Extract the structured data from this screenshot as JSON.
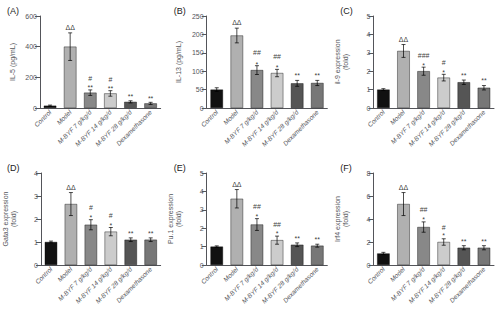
{
  "chart_data": [
    {
      "type": "bar",
      "title": "(A)",
      "ylabel": "IL-5 (pg/mL)",
      "categories": [
        "Control",
        "Model",
        "M-BYF 7 g/kg/d",
        "M-BYF 14 g/kg/d",
        "M-BYF 28 g/kg/d",
        "Dexamethasone"
      ],
      "values": [
        15,
        400,
        100,
        95,
        40,
        30
      ],
      "errors": [
        4,
        90,
        18,
        18,
        7,
        7
      ],
      "colors": [
        "#111111",
        "#b0b0b0",
        "#888888",
        "#cccccc",
        "#555555",
        "#777777"
      ],
      "ylim": [
        0,
        600
      ],
      "yticks": [
        0,
        200,
        400,
        600
      ],
      "grid": false,
      "annotations": [
        {
          "x": "Model",
          "y": 500,
          "text": "ΔΔ"
        },
        {
          "x": "M-BYF 7 g/kg/d",
          "y": 122,
          "text": "#"
        },
        {
          "x": "M-BYF 7 g/kg/d",
          "y": 110,
          "text": "**"
        },
        {
          "x": "M-BYF 14 g/kg/d",
          "y": 117,
          "text": "#"
        },
        {
          "x": "M-BYF 14 g/kg/d",
          "y": 105,
          "text": "**"
        },
        {
          "x": "M-BYF 28 g/kg/d",
          "y": 50,
          "text": "**"
        },
        {
          "x": "Dexamethasone",
          "y": 40,
          "text": "**"
        }
      ]
    },
    {
      "type": "bar",
      "title": "(B)",
      "ylabel": "IL-13 (pg/mL)",
      "categories": [
        "Control",
        "Model",
        "M-BYF 7 g/kg/d",
        "M-BYF 14 g/kg/d",
        "M-BYF 28 g/kg/d",
        "Dexamethasone"
      ],
      "values": [
        50,
        197,
        103,
        95,
        67,
        68
      ],
      "errors": [
        5,
        20,
        12,
        10,
        8,
        7
      ],
      "colors": [
        "#111111",
        "#b0b0b0",
        "#888888",
        "#cccccc",
        "#555555",
        "#777777"
      ],
      "ylim": [
        0,
        250
      ],
      "yticks": [
        0,
        50,
        100,
        150,
        200,
        250
      ],
      "grid": false,
      "annotations": [
        {
          "x": "Model",
          "y": 222,
          "text": "ΔΔ"
        },
        {
          "x": "M-BYF 7 g/kg/d",
          "y": 122,
          "text": "##"
        },
        {
          "x": "M-BYF 7 g/kg/d",
          "y": 110,
          "text": "*"
        },
        {
          "x": "M-BYF 14 g/kg/d",
          "y": 112,
          "text": "##"
        },
        {
          "x": "M-BYF 14 g/kg/d",
          "y": 100,
          "text": "*"
        },
        {
          "x": "M-BYF 28 g/kg/d",
          "y": 80,
          "text": "**"
        },
        {
          "x": "Dexamethasone",
          "y": 80,
          "text": "**"
        }
      ]
    },
    {
      "type": "bar",
      "title": "(C)",
      "ylabel": "il-9 expression\n(fold)",
      "categories": [
        "Control",
        "Model",
        "M-BYF 7 g/kg/d",
        "M-BYF 14 g/kg/d",
        "M-BYF 28 g/kg/d",
        "Dexamethasone"
      ],
      "values": [
        1.0,
        3.1,
        2.0,
        1.65,
        1.4,
        1.1
      ],
      "errors": [
        0.05,
        0.35,
        0.22,
        0.18,
        0.12,
        0.12
      ],
      "colors": [
        "#111111",
        "#b0b0b0",
        "#888888",
        "#cccccc",
        "#555555",
        "#777777"
      ],
      "ylim": [
        0,
        5
      ],
      "yticks": [
        0,
        1,
        2,
        3,
        4,
        5
      ],
      "grid": false,
      "annotations": [
        {
          "x": "Model",
          "y": 3.52,
          "text": "ΔΔ"
        },
        {
          "x": "M-BYF 7 g/kg/d",
          "y": 2.28,
          "text": "###"
        },
        {
          "x": "M-BYF 7 g/kg/d",
          "y": 2.13,
          "text": "*"
        },
        {
          "x": "M-BYF 14 g/kg/d",
          "y": 1.9,
          "text": "#"
        },
        {
          "x": "M-BYF 14 g/kg/d",
          "y": 1.75,
          "text": "*"
        },
        {
          "x": "M-BYF 28 g/kg/d",
          "y": 1.58,
          "text": "**"
        },
        {
          "x": "Dexamethasone",
          "y": 1.28,
          "text": "**"
        }
      ]
    },
    {
      "type": "bar",
      "title": "(D)",
      "ylabel": "Gata3 expression\n(fold)",
      "categories": [
        "Control",
        "Model",
        "M-BYF 7 g/kg/d",
        "M-BYF 14 g/kg/d",
        "M-BYF 28 g/kg/d",
        "Dexamethasone"
      ],
      "values": [
        1.0,
        2.65,
        1.75,
        1.45,
        1.1,
        1.1
      ],
      "errors": [
        0.04,
        0.5,
        0.22,
        0.18,
        0.08,
        0.08
      ],
      "colors": [
        "#111111",
        "#b0b0b0",
        "#888888",
        "#cccccc",
        "#555555",
        "#777777"
      ],
      "ylim": [
        0,
        4
      ],
      "yticks": [
        0,
        1,
        2,
        3,
        4
      ],
      "grid": false,
      "annotations": [
        {
          "x": "Model",
          "y": 3.22,
          "text": "ΔΔ"
        },
        {
          "x": "M-BYF 7 g/kg/d",
          "y": 2.03,
          "text": "#"
        },
        {
          "x": "M-BYF 7 g/kg/d",
          "y": 1.9,
          "text": "*"
        },
        {
          "x": "M-BYF 14 g/kg/d",
          "y": 1.7,
          "text": "#"
        },
        {
          "x": "M-BYF 14 g/kg/d",
          "y": 1.57,
          "text": "*"
        },
        {
          "x": "M-BYF 28 g/kg/d",
          "y": 1.22,
          "text": "**"
        },
        {
          "x": "Dexamethasone",
          "y": 1.22,
          "text": "**"
        }
      ]
    },
    {
      "type": "bar",
      "title": "(E)",
      "ylabel": "Pu.1 expression\n(fold)",
      "categories": [
        "Control",
        "Model",
        "M-BYF 7 g/kg/d",
        "M-BYF 14 g/kg/d",
        "M-BYF 28 g/kg/d",
        "Dexamethasone"
      ],
      "values": [
        1.0,
        3.6,
        2.2,
        1.35,
        1.1,
        1.05
      ],
      "errors": [
        0.04,
        0.5,
        0.32,
        0.22,
        0.1,
        0.08
      ],
      "colors": [
        "#111111",
        "#b0b0b0",
        "#888888",
        "#cccccc",
        "#555555",
        "#777777"
      ],
      "ylim": [
        0,
        5
      ],
      "yticks": [
        0,
        1,
        2,
        3,
        4,
        5
      ],
      "grid": false,
      "annotations": [
        {
          "x": "Model",
          "y": 4.18,
          "text": "ΔΔ"
        },
        {
          "x": "M-BYF 7 g/kg/d",
          "y": 2.6,
          "text": "##"
        },
        {
          "x": "M-BYF 7 g/kg/d",
          "y": 2.45,
          "text": "*"
        },
        {
          "x": "M-BYF 14 g/kg/d",
          "y": 1.65,
          "text": "##"
        },
        {
          "x": "M-BYF 14 g/kg/d",
          "y": 1.5,
          "text": "*"
        },
        {
          "x": "M-BYF 28 g/kg/d",
          "y": 1.25,
          "text": "**"
        },
        {
          "x": "Dexamethasone",
          "y": 1.18,
          "text": "**"
        }
      ]
    },
    {
      "type": "bar",
      "title": "(F)",
      "ylabel": "Irf4 expression\n(fold)",
      "categories": [
        "Control",
        "Model",
        "M-BYF 7 g/kg/d",
        "M-BYF 14 g/kg/d",
        "M-BYF 28 g/kg/d",
        "Dexamethasone"
      ],
      "values": [
        1.0,
        5.3,
        3.3,
        2.0,
        1.5,
        1.5
      ],
      "errors": [
        0.1,
        1.0,
        0.45,
        0.28,
        0.18,
        0.18
      ],
      "colors": [
        "#111111",
        "#b0b0b0",
        "#888888",
        "#cccccc",
        "#555555",
        "#777777"
      ],
      "ylim": [
        0,
        8
      ],
      "yticks": [
        0,
        2,
        4,
        6,
        8
      ],
      "grid": false,
      "annotations": [
        {
          "x": "Model",
          "y": 6.45,
          "text": "ΔΔ"
        },
        {
          "x": "M-BYF 7 g/kg/d",
          "y": 3.88,
          "text": "##"
        },
        {
          "x": "M-BYF 7 g/kg/d",
          "y": 3.63,
          "text": "*"
        },
        {
          "x": "M-BYF 14 g/kg/d",
          "y": 2.38,
          "text": "#"
        },
        {
          "x": "M-BYF 14 g/kg/d",
          "y": 2.22,
          "text": "*"
        },
        {
          "x": "M-BYF 28 g/kg/d",
          "y": 1.78,
          "text": "**"
        },
        {
          "x": "Dexamethasone",
          "y": 1.78,
          "text": "**"
        }
      ]
    }
  ]
}
